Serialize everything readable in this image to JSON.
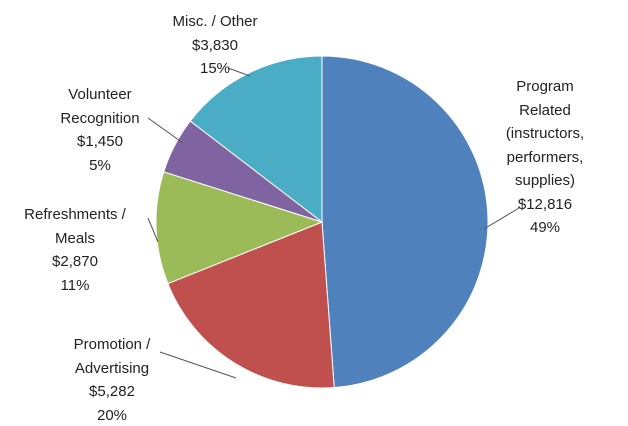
{
  "chart_data": {
    "type": "pie",
    "categories": [
      "Program Related\n(instructors,\nperformers,\nsupplies)",
      "Promotion /\nAdvertising",
      "Refreshments /\nMeals",
      "Volunteer\nRecognition",
      "Misc. / Other"
    ],
    "values": [
      12816,
      5282,
      2870,
      1450,
      3830
    ],
    "value_labels": [
      "$12,816",
      "$5,282",
      "$2,870",
      "$1,450",
      "$3,830"
    ],
    "percent_labels": [
      "49%",
      "20%",
      "11%",
      "5%",
      "15%"
    ],
    "colors": [
      "#4f81bd",
      "#c0504d",
      "#9bbb59",
      "#8064a2",
      "#4bacc6"
    ]
  }
}
